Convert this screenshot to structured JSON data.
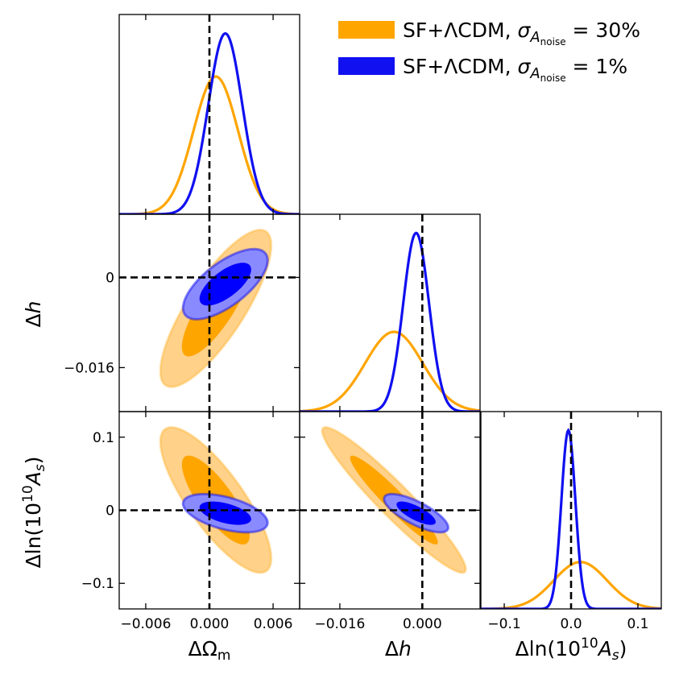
{
  "chart_data": {
    "type": "triangle-corner-plot",
    "parameters": [
      {
        "id": "om",
        "label": "ΔΩ",
        "label_sub": "m",
        "range": [
          -0.0085,
          0.0085
        ],
        "ticks": [
          -0.006,
          0.0,
          0.006
        ],
        "tick_labels": [
          "−0.006",
          "0.000",
          "0.006"
        ]
      },
      {
        "id": "h",
        "label": "Δh",
        "range": [
          -0.0238,
          0.0112
        ],
        "ticks": [
          -0.016,
          0.0
        ],
        "tick_labels_y": [
          "−0.016",
          "0"
        ],
        "tick_labels_x": [
          "−0.016",
          "0.000"
        ]
      },
      {
        "id": "as",
        "label_pre": "Δln(10",
        "label_sup": "10",
        "label_A": "A",
        "label_sub": "s",
        "label_post": ")",
        "range": [
          -0.135,
          0.135
        ],
        "ticks": [
          -0.1,
          0.0,
          0.1
        ],
        "tick_labels_y": [
          "−0.1",
          "0",
          "0.1"
        ],
        "tick_labels_x": [
          "−0.1",
          "0.0",
          "0.1"
        ]
      }
    ],
    "fiducial": {
      "om": 0.0,
      "h": 0.0,
      "as": 0.0
    },
    "series": [
      {
        "name_pre": "SF+ΛCDM, ",
        "name_sigma": "σ",
        "name_A": "A",
        "name_sub": "noise",
        "name_value": " = 30%",
        "color": "#ffa500",
        "fill_inner": "#ffa500",
        "fill_outer": "#ffd189",
        "mean": {
          "om": 0.0006,
          "h": -0.0055,
          "as": 0.014
        },
        "std": {
          "om": 0.0021,
          "h": 0.0056,
          "as": 0.04
        },
        "corr": {
          "om_h": 0.8,
          "om_as": -0.8,
          "h_as": -0.95
        }
      },
      {
        "name_pre": "SF+ΛCDM, ",
        "name_sigma": "σ",
        "name_A": "A",
        "name_sub": "noise",
        "name_value": " = 1%",
        "color": "#1010f0",
        "fill_inner": "#0000ff",
        "fill_outer": "#8a8aff",
        "mean": {
          "om": 0.0015,
          "h": -0.0012,
          "as": -0.004
        },
        "std": {
          "om": 0.0016,
          "h": 0.0025,
          "as": 0.0105
        },
        "corr": {
          "om_h": 0.68,
          "om_as": -0.5,
          "h_as": -0.75
        }
      }
    ]
  }
}
